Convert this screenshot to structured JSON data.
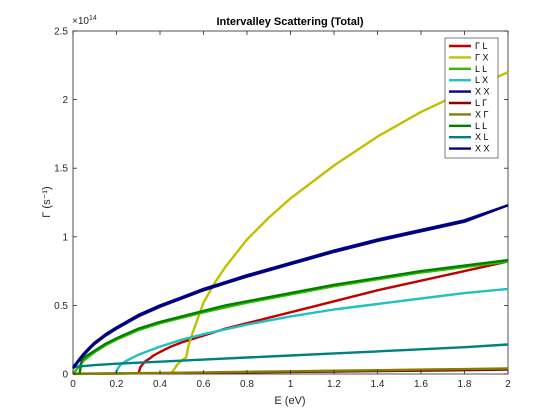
{
  "chart_data": {
    "type": "line",
    "title": "Intervalley Scattering (Total)",
    "xlabel": "E (eV)",
    "ylabel": "Γ (s⁻¹)",
    "y_exponent_label": "×10",
    "y_exponent_power": "14",
    "xlim": [
      0,
      2
    ],
    "ylim": [
      0,
      2.5
    ],
    "xticks": [
      0,
      0.2,
      0.4,
      0.6,
      0.8,
      1,
      1.2,
      1.4,
      1.6,
      1.8,
      2
    ],
    "xtick_labels": [
      "0",
      "0.2",
      "0.4",
      "0.6",
      "0.8",
      "1",
      "1.2",
      "1.4",
      "1.6",
      "1.8",
      "2"
    ],
    "yticks": [
      0,
      0.5,
      1,
      1.5,
      2,
      2.5
    ],
    "ytick_labels": [
      "0",
      "0.5",
      "1",
      "1.5",
      "2",
      "2.5"
    ],
    "grid": false,
    "legend_position": "top-right",
    "series": [
      {
        "name": "Γ L",
        "color": "#c00000",
        "x": [
          0.3,
          0.31,
          0.32,
          0.33,
          0.34,
          0.35,
          0.37,
          0.4,
          0.45,
          0.5,
          0.6,
          0.7,
          0.8,
          1.0,
          1.2,
          1.4,
          1.6,
          1.8,
          2.0
        ],
        "y": [
          0,
          0.05,
          0.07,
          0.09,
          0.1,
          0.11,
          0.135,
          0.16,
          0.2,
          0.23,
          0.28,
          0.33,
          0.37,
          0.45,
          0.53,
          0.61,
          0.68,
          0.75,
          0.82
        ]
      },
      {
        "name": "Γ X",
        "color": "#c0c000",
        "x": [
          0.45,
          0.48,
          0.5,
          0.52,
          0.53,
          0.55,
          0.6,
          0.65,
          0.7,
          0.8,
          0.9,
          1.0,
          1.2,
          1.4,
          1.6,
          1.8,
          2.0
        ],
        "y": [
          0,
          0.07,
          0.1,
          0.12,
          0.2,
          0.3,
          0.52,
          0.66,
          0.78,
          0.98,
          1.14,
          1.28,
          1.52,
          1.73,
          1.91,
          2.06,
          2.2
        ]
      },
      {
        "name": "L L",
        "color": "#33bb00",
        "x": [
          0.0,
          0.02,
          0.03,
          0.05,
          0.1,
          0.15,
          0.2,
          0.3,
          0.4,
          0.5,
          0.6,
          0.8,
          1.0,
          1.2,
          1.4,
          1.6,
          1.8,
          2.0
        ],
        "y": [
          0,
          0.04,
          0.06,
          0.1,
          0.16,
          0.21,
          0.25,
          0.32,
          0.37,
          0.41,
          0.45,
          0.52,
          0.58,
          0.64,
          0.69,
          0.74,
          0.78,
          0.82
        ]
      },
      {
        "name": "L X",
        "color": "#22c0c0",
        "x": [
          0.19,
          0.2,
          0.21,
          0.22,
          0.25,
          0.3,
          0.4,
          0.5,
          0.6,
          0.8,
          1.0,
          1.2,
          1.4,
          1.6,
          1.8,
          2.0
        ],
        "y": [
          0,
          0.02,
          0.05,
          0.07,
          0.1,
          0.14,
          0.2,
          0.25,
          0.29,
          0.36,
          0.42,
          0.47,
          0.51,
          0.55,
          0.59,
          0.62
        ]
      },
      {
        "name": "X X",
        "color": "#00008b",
        "x": [
          0.0,
          0.01,
          0.02,
          0.03,
          0.05,
          0.08,
          0.1,
          0.15,
          0.2,
          0.3,
          0.4,
          0.5,
          0.6,
          0.7,
          0.8,
          1.0,
          1.2,
          1.4,
          1.6,
          1.8,
          2.0
        ],
        "y": [
          0.05,
          0.07,
          0.09,
          0.11,
          0.15,
          0.2,
          0.23,
          0.29,
          0.34,
          0.43,
          0.5,
          0.56,
          0.62,
          0.67,
          0.72,
          0.81,
          0.9,
          0.98,
          1.05,
          1.12,
          1.23
        ]
      },
      {
        "name": "L Γ",
        "color": "#8b0000",
        "x": [
          0,
          0.2,
          0.4,
          0.6,
          0.8,
          1.0,
          1.2,
          1.4,
          1.6,
          1.8,
          2.0
        ],
        "y": [
          0.002,
          0.004,
          0.006,
          0.009,
          0.012,
          0.015,
          0.018,
          0.021,
          0.024,
          0.028,
          0.032
        ]
      },
      {
        "name": "X Γ",
        "color": "#808000",
        "x": [
          0,
          0.2,
          0.4,
          0.6,
          0.8,
          1.0,
          1.2,
          1.4,
          1.6,
          1.8,
          2.0
        ],
        "y": [
          0.001,
          0.004,
          0.008,
          0.012,
          0.016,
          0.02,
          0.024,
          0.028,
          0.032,
          0.036,
          0.04
        ]
      },
      {
        "name": "L L",
        "color": "#008000",
        "x": [
          0.03,
          0.04,
          0.06,
          0.1,
          0.15,
          0.2,
          0.3,
          0.4,
          0.5,
          0.6,
          0.7,
          0.8,
          1.0,
          1.2,
          1.4,
          1.6,
          1.8,
          2.0
        ],
        "y": [
          0,
          0.1,
          0.13,
          0.17,
          0.22,
          0.26,
          0.33,
          0.38,
          0.42,
          0.46,
          0.5,
          0.53,
          0.59,
          0.65,
          0.7,
          0.75,
          0.79,
          0.83
        ]
      },
      {
        "name": "X L",
        "color": "#008080",
        "x": [
          0,
          0.1,
          0.2,
          0.4,
          0.6,
          0.8,
          1.0,
          1.2,
          1.4,
          1.6,
          1.8,
          2.0
        ],
        "y": [
          0.05,
          0.065,
          0.075,
          0.09,
          0.105,
          0.12,
          0.135,
          0.15,
          0.165,
          0.18,
          0.195,
          0.215
        ]
      },
      {
        "name": "X X",
        "color": "#000080",
        "x": [
          0.0,
          0.01,
          0.02,
          0.03,
          0.05,
          0.08,
          0.1,
          0.15,
          0.2,
          0.3,
          0.4,
          0.5,
          0.6,
          0.7,
          0.8,
          1.0,
          1.2,
          1.4,
          1.6,
          1.8,
          2.0
        ],
        "y": [
          0.04,
          0.06,
          0.08,
          0.1,
          0.14,
          0.19,
          0.22,
          0.28,
          0.33,
          0.42,
          0.49,
          0.55,
          0.61,
          0.66,
          0.71,
          0.8,
          0.89,
          0.97,
          1.04,
          1.11,
          1.23
        ]
      }
    ]
  }
}
